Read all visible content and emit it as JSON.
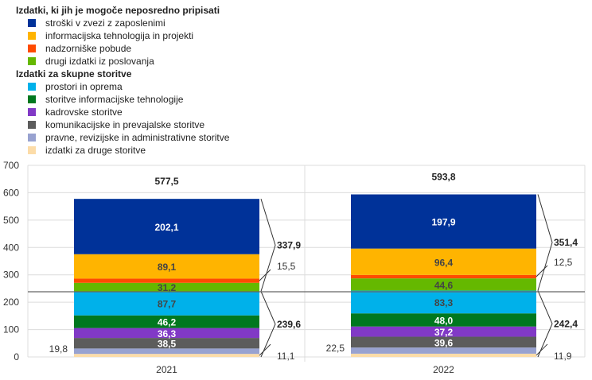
{
  "chart_data": {
    "type": "bar",
    "stacked": true,
    "categories": [
      "2021",
      "2022"
    ],
    "ylim": [
      0,
      700
    ],
    "yticks": [
      0,
      100,
      200,
      300,
      400,
      500,
      600,
      700
    ],
    "grid": true,
    "legend_groups": [
      {
        "title": "Izdatki, ki jih je mogoče neposredno pripisati",
        "series_indices": [
          9,
          8,
          7,
          6
        ]
      },
      {
        "title": "Izdatki za skupne storitve",
        "series_indices": [
          5,
          4,
          3,
          2,
          1,
          0
        ]
      }
    ],
    "series": [
      {
        "name": "izdatki za druge storitve",
        "color": "#FCDCA8",
        "values": [
          11.1,
          11.9
        ],
        "labels": [
          "11,1",
          "11,9"
        ],
        "label_pos": "right",
        "label_color": "#333333"
      },
      {
        "name": "pravne, revizijske in administrativne storitve",
        "color": "#98A2D0",
        "values": [
          19.8,
          22.5
        ],
        "labels": [
          "19,8",
          "22,5"
        ],
        "label_pos": "left",
        "label_color": "#333333"
      },
      {
        "name": "komunikacijske in prevajalske storitve",
        "color": "#5C5C5C",
        "values": [
          38.5,
          39.6
        ],
        "labels": [
          "38,5",
          "39,6"
        ],
        "label_pos": "inside",
        "label_color": "#ffffff"
      },
      {
        "name": "kadrovske storitve",
        "color": "#8139C6",
        "values": [
          36.3,
          37.2
        ],
        "labels": [
          "36,3",
          "37,2"
        ],
        "label_pos": "inside",
        "label_color": "#ffffff"
      },
      {
        "name": "storitve informacijske tehnologije",
        "color": "#00781F",
        "values": [
          46.2,
          48.0
        ],
        "labels": [
          "46,2",
          "48,0"
        ],
        "label_pos": "inside",
        "label_color": "#ffffff"
      },
      {
        "name": "prostori in oprema",
        "color": "#00B1EA",
        "values": [
          87.7,
          83.3
        ],
        "labels": [
          "87,7",
          "83,3"
        ],
        "label_pos": "inside",
        "label_color": "#444444"
      },
      {
        "name": "drugi izdatki iz poslovanja",
        "color": "#65B800",
        "values": [
          31.2,
          44.6
        ],
        "labels": [
          "31,2",
          "44,6"
        ],
        "label_pos": "inside",
        "label_color": "#444444"
      },
      {
        "name": "nadzorniške pobude",
        "color": "#FF4B00",
        "values": [
          15.5,
          12.5
        ],
        "labels": [
          "15,5",
          "12,5"
        ],
        "label_pos": "right",
        "label_color": "#333333"
      },
      {
        "name": "informacijska tehnologija in projekti",
        "color": "#FFB400",
        "values": [
          89.1,
          96.4
        ],
        "labels": [
          "89,1",
          "96,4"
        ],
        "label_pos": "inside",
        "label_color": "#444444"
      },
      {
        "name": "stroški v zvezi z zaposlenimi",
        "color": "#003299",
        "values": [
          202.1,
          197.9
        ],
        "labels": [
          "202,1",
          "197,9"
        ],
        "label_pos": "inside",
        "label_color": "#ffffff"
      }
    ],
    "totals": [
      "577,5",
      "593,8"
    ],
    "group_totals": {
      "shared_services": {
        "values": [
          239.6,
          242.4
        ],
        "labels": [
          "239,6",
          "242,4"
        ]
      },
      "direct": {
        "values": [
          337.9,
          351.4
        ],
        "labels": [
          "337,9",
          "351,4"
        ]
      }
    },
    "title": "",
    "xlabel": "",
    "ylabel": ""
  }
}
